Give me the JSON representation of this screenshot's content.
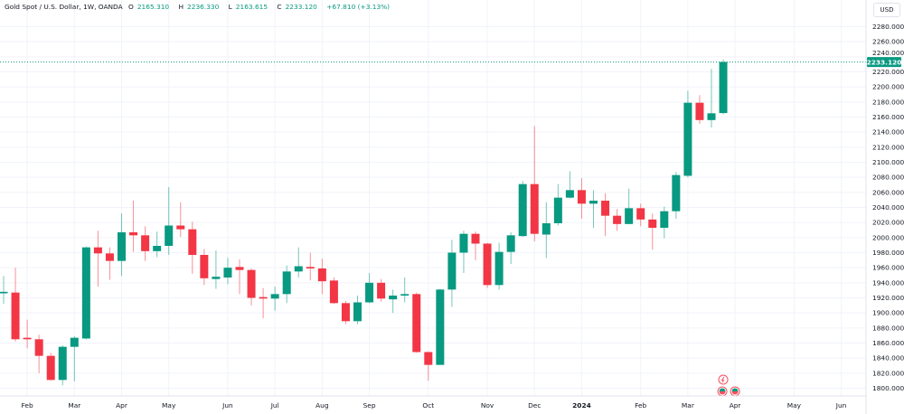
{
  "legend": {
    "symbol": "Gold Spot / U.S. Dollar, 1W, OANDA",
    "open_label": "O",
    "open": "2165.310",
    "high_label": "H",
    "high": "2236.330",
    "low_label": "L",
    "low": "2163.615",
    "close_label": "C",
    "close": "2233.120",
    "change": "+67.810 (+3.13%)"
  },
  "currency": "USD",
  "last_price_label": "2233.120",
  "colors": {
    "up": "#089981",
    "down": "#f23645",
    "grid": "#f0f3fa",
    "price_line": "#089981"
  },
  "event_markers": [
    "lightning-icon",
    "flag-icon",
    "flag-icon"
  ],
  "chart_data": {
    "type": "candlestick",
    "title": "Gold Spot / U.S. Dollar, 1W, OANDA",
    "ylim": [
      1800,
      2280
    ],
    "grid": true,
    "y_ticks": [
      "2280.000",
      "2260.000",
      "2240.000",
      "2220.000",
      "2200.000",
      "2180.000",
      "2160.000",
      "2140.000",
      "2120.000",
      "2100.000",
      "2080.000",
      "2060.000",
      "2040.000",
      "2020.000",
      "2000.000",
      "1980.000",
      "1960.000",
      "1940.000",
      "1920.000",
      "1900.000",
      "1880.000",
      "1860.000",
      "1840.000",
      "1820.000",
      "1800.000"
    ],
    "x_ticks": [
      {
        "label": "Feb",
        "date": "2023-02-06"
      },
      {
        "label": "Mar",
        "date": "2023-03-06"
      },
      {
        "label": "Apr",
        "date": "2023-04-03"
      },
      {
        "label": "May",
        "date": "2023-05-01"
      },
      {
        "label": "Jun",
        "date": "2023-06-05"
      },
      {
        "label": "Jul",
        "date": "2023-07-03"
      },
      {
        "label": "Aug",
        "date": "2023-07-31"
      },
      {
        "label": "Sep",
        "date": "2023-08-28"
      },
      {
        "label": "Oct",
        "date": "2023-10-02"
      },
      {
        "label": "Nov",
        "date": "2023-11-06"
      },
      {
        "label": "Dec",
        "date": "2023-12-04"
      },
      {
        "label": "2024",
        "date": "2024-01-01"
      },
      {
        "label": "Feb",
        "date": "2024-02-05"
      },
      {
        "label": "Mar",
        "date": "2024-03-04"
      },
      {
        "label": "Apr",
        "date": "2024-04-01"
      },
      {
        "label": "May",
        "date": "2024-05-06"
      },
      {
        "label": "Jun",
        "date": "2024-06-03"
      }
    ],
    "candles": [
      {
        "date": "2023-01-23",
        "o": 1926,
        "h": 1949,
        "l": 1912,
        "c": 1928
      },
      {
        "date": "2023-01-30",
        "o": 1927,
        "h": 1960,
        "l": 1862,
        "c": 1865
      },
      {
        "date": "2023-02-06",
        "o": 1867,
        "h": 1891,
        "l": 1853,
        "c": 1865
      },
      {
        "date": "2023-02-13",
        "o": 1865,
        "h": 1871,
        "l": 1820,
        "c": 1843
      },
      {
        "date": "2023-02-20",
        "o": 1843,
        "h": 1847,
        "l": 1810,
        "c": 1811
      },
      {
        "date": "2023-02-27",
        "o": 1811,
        "h": 1857,
        "l": 1804,
        "c": 1855
      },
      {
        "date": "2023-03-06",
        "o": 1855,
        "h": 1869,
        "l": 1809,
        "c": 1867
      },
      {
        "date": "2023-03-13",
        "o": 1866,
        "h": 1988,
        "l": 1865,
        "c": 1987
      },
      {
        "date": "2023-03-20",
        "o": 1987,
        "h": 2009,
        "l": 1935,
        "c": 1979
      },
      {
        "date": "2023-03-27",
        "o": 1979,
        "h": 1987,
        "l": 1944,
        "c": 1969
      },
      {
        "date": "2023-04-03",
        "o": 1969,
        "h": 2032,
        "l": 1949,
        "c": 2007
      },
      {
        "date": "2023-04-10",
        "o": 2007,
        "h": 2049,
        "l": 1981,
        "c": 2003
      },
      {
        "date": "2023-04-17",
        "o": 2003,
        "h": 2015,
        "l": 1969,
        "c": 1982
      },
      {
        "date": "2023-04-24",
        "o": 1982,
        "h": 2008,
        "l": 1974,
        "c": 1989
      },
      {
        "date": "2023-05-01",
        "o": 1989,
        "h": 2067,
        "l": 1977,
        "c": 2016
      },
      {
        "date": "2023-05-08",
        "o": 2016,
        "h": 2047,
        "l": 2001,
        "c": 2011
      },
      {
        "date": "2023-05-15",
        "o": 2011,
        "h": 2021,
        "l": 1952,
        "c": 1977
      },
      {
        "date": "2023-05-22",
        "o": 1977,
        "h": 1985,
        "l": 1937,
        "c": 1946
      },
      {
        "date": "2023-05-29",
        "o": 1945,
        "h": 1983,
        "l": 1932,
        "c": 1948
      },
      {
        "date": "2023-06-05",
        "o": 1947,
        "h": 1973,
        "l": 1938,
        "c": 1960
      },
      {
        "date": "2023-06-12",
        "o": 1961,
        "h": 1971,
        "l": 1925,
        "c": 1957
      },
      {
        "date": "2023-06-19",
        "o": 1957,
        "h": 1959,
        "l": 1910,
        "c": 1920
      },
      {
        "date": "2023-06-26",
        "o": 1921,
        "h": 1933,
        "l": 1893,
        "c": 1919
      },
      {
        "date": "2023-07-03",
        "o": 1919,
        "h": 1935,
        "l": 1903,
        "c": 1925
      },
      {
        "date": "2023-07-10",
        "o": 1925,
        "h": 1963,
        "l": 1913,
        "c": 1955
      },
      {
        "date": "2023-07-17",
        "o": 1955,
        "h": 1987,
        "l": 1947,
        "c": 1962
      },
      {
        "date": "2023-07-24",
        "o": 1961,
        "h": 1980,
        "l": 1943,
        "c": 1959
      },
      {
        "date": "2023-07-31",
        "o": 1959,
        "h": 1972,
        "l": 1925,
        "c": 1942
      },
      {
        "date": "2023-08-07",
        "o": 1943,
        "h": 1947,
        "l": 1912,
        "c": 1913
      },
      {
        "date": "2023-08-14",
        "o": 1913,
        "h": 1916,
        "l": 1885,
        "c": 1889
      },
      {
        "date": "2023-08-21",
        "o": 1889,
        "h": 1923,
        "l": 1885,
        "c": 1914
      },
      {
        "date": "2023-08-28",
        "o": 1914,
        "h": 1953,
        "l": 1913,
        "c": 1940
      },
      {
        "date": "2023-09-04",
        "o": 1940,
        "h": 1945,
        "l": 1915,
        "c": 1919
      },
      {
        "date": "2023-09-11",
        "o": 1918,
        "h": 1931,
        "l": 1900,
        "c": 1923
      },
      {
        "date": "2023-09-18",
        "o": 1923,
        "h": 1947,
        "l": 1914,
        "c": 1925
      },
      {
        "date": "2023-09-25",
        "o": 1925,
        "h": 1927,
        "l": 1847,
        "c": 1848
      },
      {
        "date": "2023-10-02",
        "o": 1848,
        "h": 1849,
        "l": 1810,
        "c": 1831
      },
      {
        "date": "2023-10-09",
        "o": 1831,
        "h": 1932,
        "l": 1831,
        "c": 1931
      },
      {
        "date": "2023-10-16",
        "o": 1931,
        "h": 1997,
        "l": 1908,
        "c": 1980
      },
      {
        "date": "2023-10-23",
        "o": 1980,
        "h": 2009,
        "l": 1953,
        "c": 2005
      },
      {
        "date": "2023-10-30",
        "o": 2005,
        "h": 2008,
        "l": 1970,
        "c": 1992
      },
      {
        "date": "2023-11-06",
        "o": 1992,
        "h": 1993,
        "l": 1933,
        "c": 1937
      },
      {
        "date": "2023-11-13",
        "o": 1937,
        "h": 1993,
        "l": 1931,
        "c": 1981
      },
      {
        "date": "2023-11-20",
        "o": 1981,
        "h": 2007,
        "l": 1965,
        "c": 2003
      },
      {
        "date": "2023-11-27",
        "o": 2002,
        "h": 2075,
        "l": 2001,
        "c": 2071
      },
      {
        "date": "2023-12-04",
        "o": 2071,
        "h": 2148,
        "l": 1995,
        "c": 2005
      },
      {
        "date": "2023-12-11",
        "o": 2004,
        "h": 2047,
        "l": 1973,
        "c": 2019
      },
      {
        "date": "2023-12-18",
        "o": 2019,
        "h": 2071,
        "l": 2016,
        "c": 2053
      },
      {
        "date": "2023-12-25",
        "o": 2053,
        "h": 2088,
        "l": 2052,
        "c": 2063
      },
      {
        "date": "2024-01-01",
        "o": 2063,
        "h": 2079,
        "l": 2025,
        "c": 2045
      },
      {
        "date": "2024-01-08",
        "o": 2045,
        "h": 2063,
        "l": 2013,
        "c": 2049
      },
      {
        "date": "2024-01-15",
        "o": 2049,
        "h": 2059,
        "l": 2002,
        "c": 2029
      },
      {
        "date": "2024-01-22",
        "o": 2029,
        "h": 2038,
        "l": 2009,
        "c": 2018
      },
      {
        "date": "2024-01-29",
        "o": 2018,
        "h": 2065,
        "l": 2018,
        "c": 2039
      },
      {
        "date": "2024-02-05",
        "o": 2039,
        "h": 2045,
        "l": 2015,
        "c": 2024
      },
      {
        "date": "2024-02-12",
        "o": 2024,
        "h": 2032,
        "l": 1984,
        "c": 2013
      },
      {
        "date": "2024-02-19",
        "o": 2013,
        "h": 2041,
        "l": 1999,
        "c": 2035
      },
      {
        "date": "2024-02-26",
        "o": 2035,
        "h": 2087,
        "l": 2025,
        "c": 2083
      },
      {
        "date": "2024-03-04",
        "o": 2082,
        "h": 2195,
        "l": 2080,
        "c": 2179
      },
      {
        "date": "2024-03-11",
        "o": 2179,
        "h": 2189,
        "l": 2151,
        "c": 2156
      },
      {
        "date": "2024-03-18",
        "o": 2156,
        "h": 2224,
        "l": 2146,
        "c": 2165
      },
      {
        "date": "2024-03-25",
        "o": 2165.31,
        "h": 2236.33,
        "l": 2163.615,
        "c": 2233.12
      }
    ]
  }
}
